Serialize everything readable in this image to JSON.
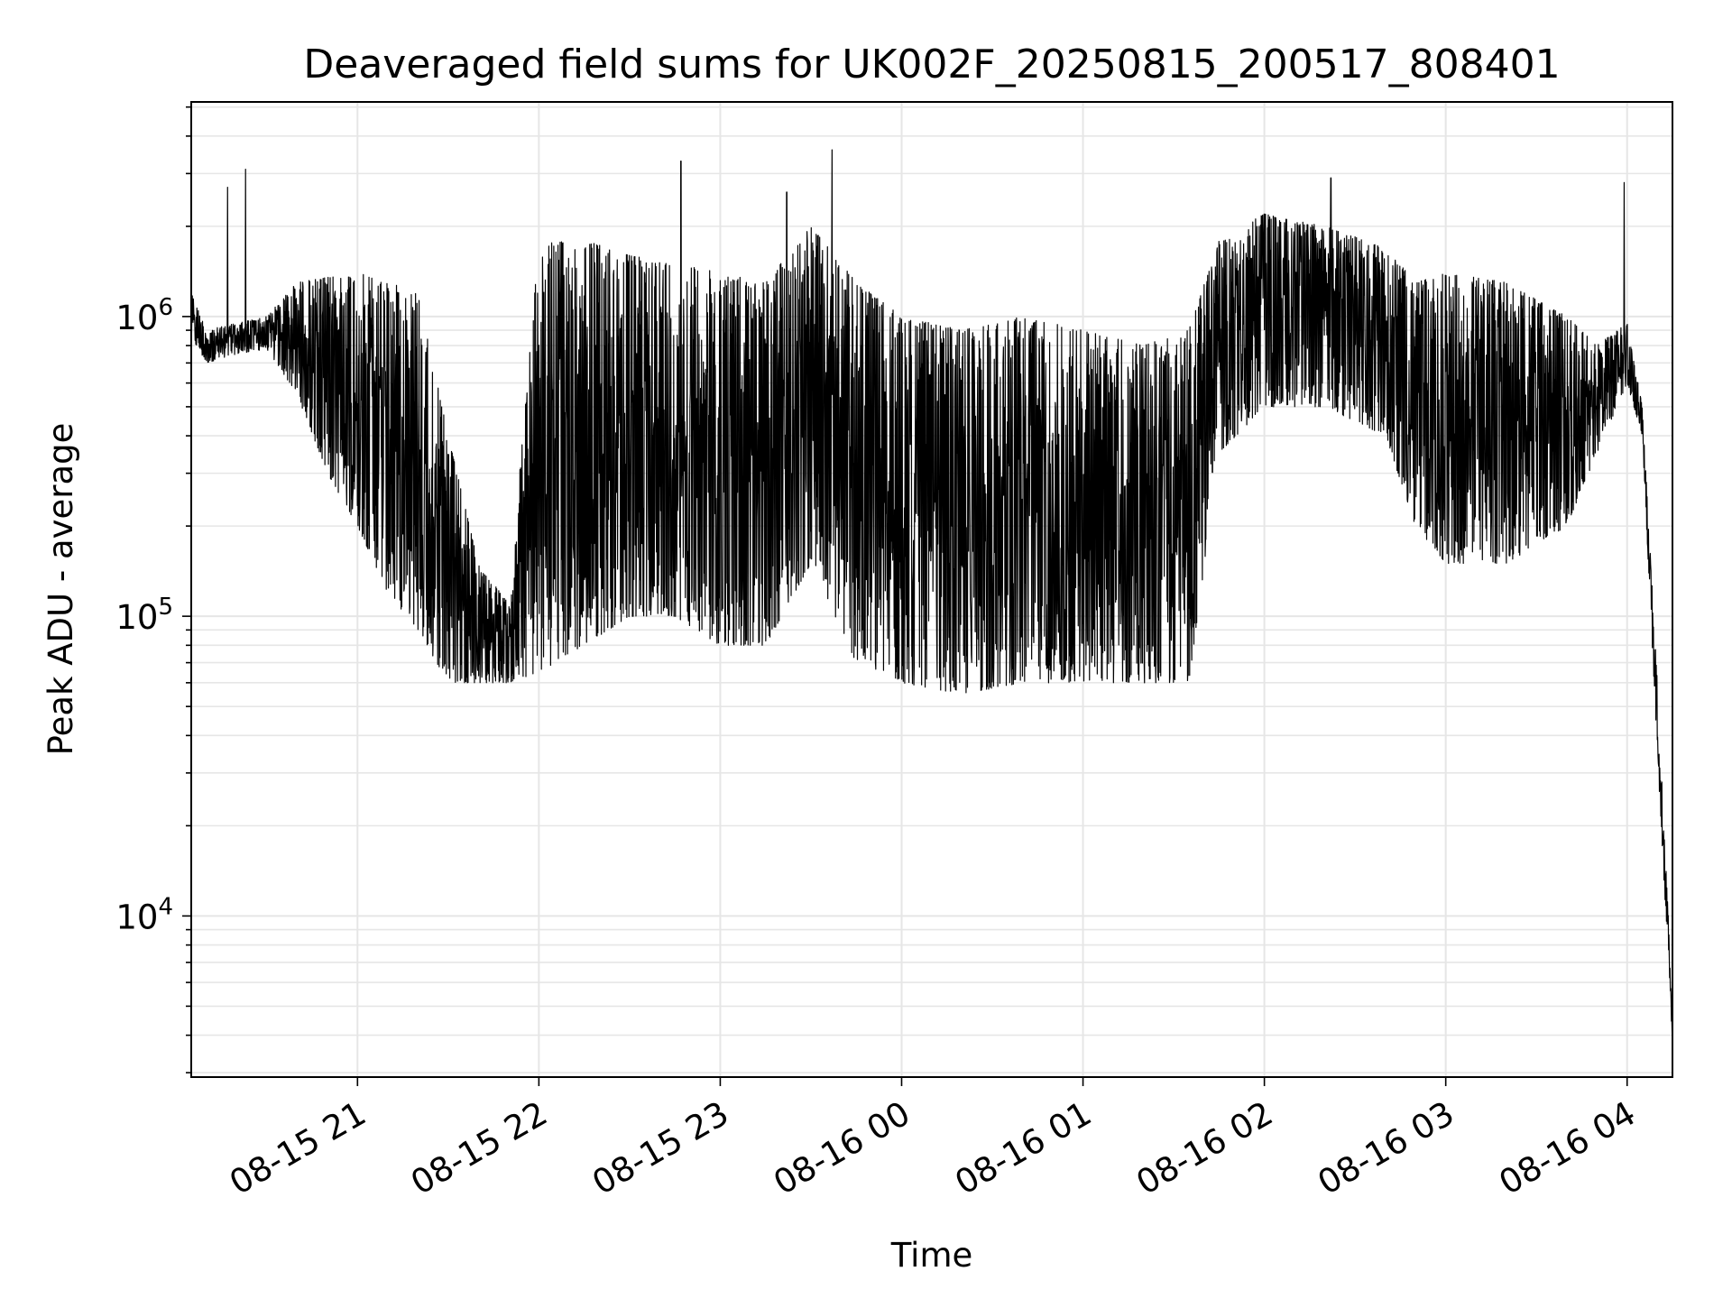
{
  "chart_data": {
    "type": "line",
    "title": "Deaveraged field sums for UK002F_20250815_200517_808401",
    "xlabel": "Time",
    "ylabel": "Peak ADU - average",
    "yscale": "log",
    "ylim": [
      2900,
      5200000
    ],
    "xlim": [
      "2025-08-15 20:05",
      "2025-08-16 04:15"
    ],
    "grid": true,
    "line_color": "#000000",
    "grid_color": "#e6e6e6",
    "x_ticks": [
      {
        "value": "2025-08-15 21:00",
        "label": "08-15 21"
      },
      {
        "value": "2025-08-15 22:00",
        "label": "08-15 22"
      },
      {
        "value": "2025-08-15 23:00",
        "label": "08-15 23"
      },
      {
        "value": "2025-08-16 00:00",
        "label": "08-16 00"
      },
      {
        "value": "2025-08-16 01:00",
        "label": "08-16 01"
      },
      {
        "value": "2025-08-16 02:00",
        "label": "08-16 02"
      },
      {
        "value": "2025-08-16 03:00",
        "label": "08-16 03"
      },
      {
        "value": "2025-08-16 04:00",
        "label": "08-16 04"
      }
    ],
    "y_ticks": [
      {
        "value": 10000,
        "base": "10",
        "exp": "4"
      },
      {
        "value": 100000,
        "base": "10",
        "exp": "5"
      },
      {
        "value": 1000000,
        "base": "10",
        "exp": "6"
      }
    ],
    "series": [
      {
        "profile_points": [
          {
            "t": "2025-08-15 20:05",
            "lo": 850000,
            "hi": 1200000
          },
          {
            "t": "2025-08-15 20:10",
            "lo": 700000,
            "hi": 900000
          },
          {
            "t": "2025-08-15 20:20",
            "lo": 750000,
            "hi": 950000
          },
          {
            "t": "2025-08-15 20:30",
            "lo": 780000,
            "hi": 1000000
          },
          {
            "t": "2025-08-15 20:40",
            "lo": 550000,
            "hi": 1300000
          },
          {
            "t": "2025-08-15 20:50",
            "lo": 300000,
            "hi": 1350000
          },
          {
            "t": "2025-08-15 21:00",
            "lo": 200000,
            "hi": 1400000
          },
          {
            "t": "2025-08-15 21:10",
            "lo": 120000,
            "hi": 1300000
          },
          {
            "t": "2025-08-15 21:20",
            "lo": 90000,
            "hi": 1200000
          },
          {
            "t": "2025-08-15 21:30",
            "lo": 60000,
            "hi": 400000
          },
          {
            "t": "2025-08-15 21:40",
            "lo": 60000,
            "hi": 150000
          },
          {
            "t": "2025-08-15 21:50",
            "lo": 60000,
            "hi": 110000
          },
          {
            "t": "2025-08-15 22:00",
            "lo": 65000,
            "hi": 1750000
          },
          {
            "t": "2025-08-15 22:15",
            "lo": 80000,
            "hi": 1800000
          },
          {
            "t": "2025-08-15 22:30",
            "lo": 100000,
            "hi": 1600000
          },
          {
            "t": "2025-08-15 22:45",
            "lo": 100000,
            "hi": 1500000
          },
          {
            "t": "2025-08-15 23:00",
            "lo": 80000,
            "hi": 1400000
          },
          {
            "t": "2025-08-15 23:15",
            "lo": 80000,
            "hi": 1300000
          },
          {
            "t": "2025-08-15 23:30",
            "lo": 150000,
            "hi": 2000000
          },
          {
            "t": "2025-08-15 23:45",
            "lo": 70000,
            "hi": 1300000
          },
          {
            "t": "2025-08-16 00:00",
            "lo": 60000,
            "hi": 1000000
          },
          {
            "t": "2025-08-16 00:20",
            "lo": 55000,
            "hi": 900000
          },
          {
            "t": "2025-08-16 00:40",
            "lo": 60000,
            "hi": 1000000
          },
          {
            "t": "2025-08-16 01:00",
            "lo": 60000,
            "hi": 900000
          },
          {
            "t": "2025-08-16 01:20",
            "lo": 60000,
            "hi": 800000
          },
          {
            "t": "2025-08-16 01:35",
            "lo": 60000,
            "hi": 900000
          },
          {
            "t": "2025-08-16 01:45",
            "lo": 350000,
            "hi": 1800000
          },
          {
            "t": "2025-08-16 02:00",
            "lo": 500000,
            "hi": 2200000
          },
          {
            "t": "2025-08-16 02:20",
            "lo": 500000,
            "hi": 2000000
          },
          {
            "t": "2025-08-16 02:40",
            "lo": 400000,
            "hi": 1700000
          },
          {
            "t": "2025-08-16 02:50",
            "lo": 200000,
            "hi": 1300000
          },
          {
            "t": "2025-08-16 03:00",
            "lo": 150000,
            "hi": 1400000
          },
          {
            "t": "2025-08-16 03:20",
            "lo": 150000,
            "hi": 1300000
          },
          {
            "t": "2025-08-16 03:40",
            "lo": 200000,
            "hi": 1000000
          },
          {
            "t": "2025-08-16 03:50",
            "lo": 350000,
            "hi": 800000
          },
          {
            "t": "2025-08-16 04:00",
            "lo": 600000,
            "hi": 950000
          },
          {
            "t": "2025-08-16 04:05",
            "lo": 400000,
            "hi": 500000
          },
          {
            "t": "2025-08-16 04:10",
            "lo": 35000,
            "hi": 60000
          },
          {
            "t": "2025-08-16 04:15",
            "lo": 3800,
            "hi": 5000
          }
        ],
        "spikes": [
          {
            "t": "2025-08-15 20:17",
            "v": 2700000
          },
          {
            "t": "2025-08-15 20:23",
            "v": 3100000
          },
          {
            "t": "2025-08-15 22:47",
            "v": 3300000
          },
          {
            "t": "2025-08-15 23:22",
            "v": 2600000
          },
          {
            "t": "2025-08-15 23:37",
            "v": 3600000
          },
          {
            "t": "2025-08-16 02:22",
            "v": 2900000
          },
          {
            "t": "2025-08-16 03:59",
            "v": 2800000
          }
        ]
      }
    ]
  }
}
